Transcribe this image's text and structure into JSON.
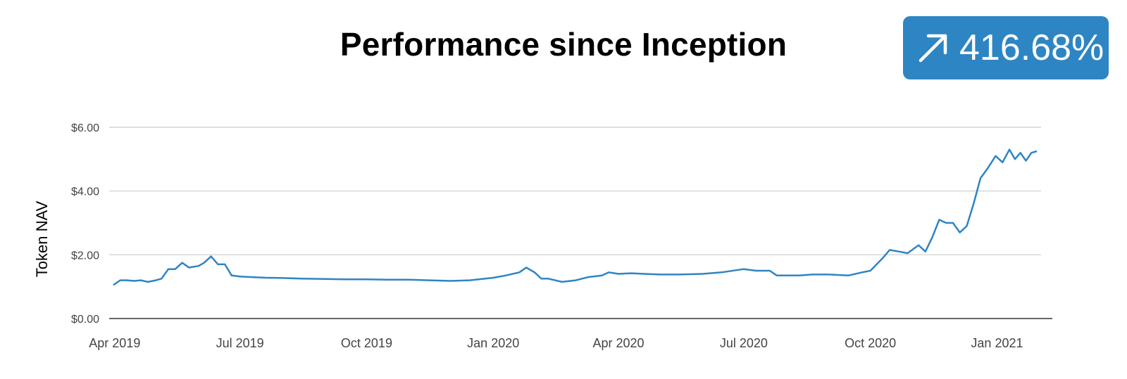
{
  "header": {
    "title": "Performance since Inception",
    "badge_value": "416.68%",
    "badge_icon": "arrow-up-right-icon",
    "badge_color": "#2e85c3"
  },
  "chart_data": {
    "type": "line",
    "ylabel": "Token NAV",
    "xlabel": "",
    "ylim": [
      0,
      6
    ],
    "y_ticks": [
      "$0.00",
      "$2.00",
      "$4.00",
      "$6.00"
    ],
    "x_ticks": [
      "Apr 2019",
      "Jul 2019",
      "Oct 2019",
      "Jan 2020",
      "Apr 2020",
      "Jul 2020",
      "Oct 2020",
      "Jan 2021"
    ],
    "grid": true,
    "line_color": "#2e85c3",
    "x": [
      "2019-03-31",
      "2019-04-05",
      "2019-04-10",
      "2019-04-15",
      "2019-04-20",
      "2019-04-25",
      "2019-05-01",
      "2019-05-05",
      "2019-05-10",
      "2019-05-15",
      "2019-05-20",
      "2019-05-25",
      "2019-06-01",
      "2019-06-05",
      "2019-06-10",
      "2019-06-15",
      "2019-06-20",
      "2019-06-25",
      "2019-07-01",
      "2019-07-10",
      "2019-07-20",
      "2019-08-01",
      "2019-08-15",
      "2019-09-01",
      "2019-09-15",
      "2019-10-01",
      "2019-10-15",
      "2019-11-01",
      "2019-11-15",
      "2019-12-01",
      "2019-12-15",
      "2020-01-01",
      "2020-01-10",
      "2020-01-20",
      "2020-01-25",
      "2020-01-31",
      "2020-02-05",
      "2020-02-10",
      "2020-02-20",
      "2020-03-01",
      "2020-03-10",
      "2020-03-20",
      "2020-03-25",
      "2020-04-01",
      "2020-04-10",
      "2020-04-20",
      "2020-05-01",
      "2020-05-15",
      "2020-06-01",
      "2020-06-15",
      "2020-07-01",
      "2020-07-10",
      "2020-07-20",
      "2020-07-25",
      "2020-08-01",
      "2020-08-10",
      "2020-08-20",
      "2020-09-01",
      "2020-09-15",
      "2020-09-25",
      "2020-10-01",
      "2020-10-10",
      "2020-10-15",
      "2020-10-22",
      "2020-10-28",
      "2020-11-05",
      "2020-11-10",
      "2020-11-15",
      "2020-11-20",
      "2020-11-25",
      "2020-11-30",
      "2020-12-05",
      "2020-12-10",
      "2020-12-15",
      "2020-12-20",
      "2020-12-25",
      "2020-12-28",
      "2020-12-31",
      "2021-01-05",
      "2021-01-10",
      "2021-01-14",
      "2021-01-18",
      "2021-01-22",
      "2021-01-26",
      "2021-01-30"
    ],
    "series": [
      {
        "values": [
          1.05,
          1.2,
          1.2,
          1.18,
          1.2,
          1.15,
          1.2,
          1.25,
          1.55,
          1.55,
          1.75,
          1.6,
          1.65,
          1.75,
          1.95,
          1.7,
          1.7,
          1.35,
          1.32,
          1.3,
          1.28,
          1.27,
          1.25,
          1.24,
          1.23,
          1.23,
          1.22,
          1.22,
          1.2,
          1.18,
          1.2,
          1.28,
          1.35,
          1.45,
          1.6,
          1.45,
          1.25,
          1.25,
          1.15,
          1.2,
          1.3,
          1.35,
          1.45,
          1.4,
          1.42,
          1.4,
          1.38,
          1.38,
          1.4,
          1.45,
          1.55,
          1.5,
          1.5,
          1.35,
          1.35,
          1.35,
          1.38,
          1.38,
          1.35,
          1.45,
          1.5,
          1.9,
          2.15,
          2.1,
          2.05,
          2.3,
          2.1,
          2.55,
          3.1,
          3.0,
          3.0,
          2.7,
          2.9,
          3.6,
          4.4,
          4.7,
          4.9,
          5.1,
          4.9,
          5.3,
          5.0,
          5.2,
          4.95,
          5.2,
          5.25
        ]
      }
    ]
  }
}
